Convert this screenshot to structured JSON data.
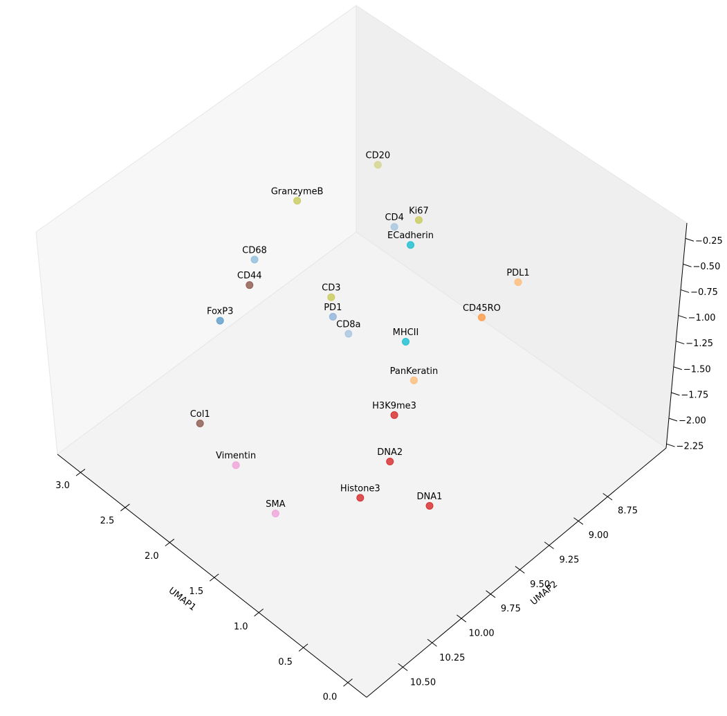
{
  "chart_data": {
    "type": "scatter3d",
    "x_label": "UMAP1",
    "y_label": "UMAP2",
    "labels": [
      "CD20",
      "GranzymeB",
      "Ki67",
      "CD4",
      "ECadherin",
      "CD68",
      "CD44",
      "CD3",
      "FoxP3",
      "PD1",
      "CD8a",
      "PDL1",
      "CD45RO",
      "MHCII",
      "PanKeratin",
      "H3K9me3",
      "Col1",
      "Vimentin",
      "DNA2",
      "Histone3",
      "DNA1",
      "SMA"
    ],
    "x": [
      2.36,
      2.62,
      1.97,
      2.14,
      1.99,
      2.75,
      2.76,
      2.13,
      2.83,
      2.06,
      1.93,
      1.1,
      1.21,
      1.63,
      1.38,
      1.32,
      2.44,
      2.02,
      1.17,
      1.16,
      0.7,
      1.53
    ],
    "y": [
      8.76,
      9.22,
      8.72,
      8.79,
      8.77,
      9.48,
      9.52,
      9.32,
      9.72,
      9.36,
      9.33,
      8.56,
      8.77,
      9.08,
      9.2,
      9.41,
      10.2,
      10.22,
      9.56,
      9.82,
      9.58,
      10.26
    ],
    "z": [
      -0.65,
      -0.76,
      -0.98,
      -1.09,
      -1.19,
      -1.19,
      -1.41,
      -1.3,
      -1.63,
      -1.41,
      -1.52,
      -1.19,
      -1.41,
      -1.63,
      -1.74,
      -1.85,
      -1.96,
      -2.07,
      -2.07,
      -2.18,
      -2.18,
      -2.18
    ],
    "colors": [
      "#d4d48a",
      "#c9c95a",
      "#c9c95a",
      "#a6c4e0",
      "#17becf",
      "#8fbcdb",
      "#8c564b",
      "#c9c95a",
      "#5a9bc9",
      "#8fb3dc",
      "#a6c4e0",
      "#ffbb78",
      "#ff9a45",
      "#17becf",
      "#ffbb78",
      "#d62728",
      "#8c564b",
      "#f0a2d8",
      "#d62728",
      "#d62728",
      "#d62728",
      "#f0a2d8"
    ],
    "xlim": [
      -0.21,
      3.26
    ],
    "ylim": [
      8.25,
      10.81
    ],
    "zlim": [
      -2.29,
      -0.1
    ],
    "xticks": [
      {
        "value": 0,
        "label": "0.0"
      },
      0.5,
      {
        "value": 1,
        "label": "1.0"
      },
      1.5,
      {
        "value": 2,
        "label": "2.0"
      },
      2.5,
      {
        "value": 3,
        "label": "3.0"
      }
    ],
    "yticks": [
      8.75,
      {
        "value": 9,
        "label": "9.00"
      },
      9.25,
      {
        "value": 9.5,
        "label": "9.50"
      },
      9.75,
      {
        "value": 10,
        "label": "10.00"
      },
      10.25,
      {
        "value": 10.5,
        "label": "10.50"
      }
    ],
    "zticks": [
      {
        "value": -2.25,
        "label": "−2.25"
      },
      {
        "value": -2,
        "label": "−2.00"
      },
      {
        "value": -1.75,
        "label": "−1.75"
      },
      {
        "value": -1.5,
        "label": "−1.50"
      },
      {
        "value": -1.25,
        "label": "−1.25"
      },
      {
        "value": -1,
        "label": "−1.00"
      },
      {
        "value": -0.75,
        "label": "−0.75"
      },
      {
        "value": -0.5,
        "label": "−0.50"
      },
      {
        "value": -0.25,
        "label": "−0.25"
      }
    ],
    "grid": false
  }
}
